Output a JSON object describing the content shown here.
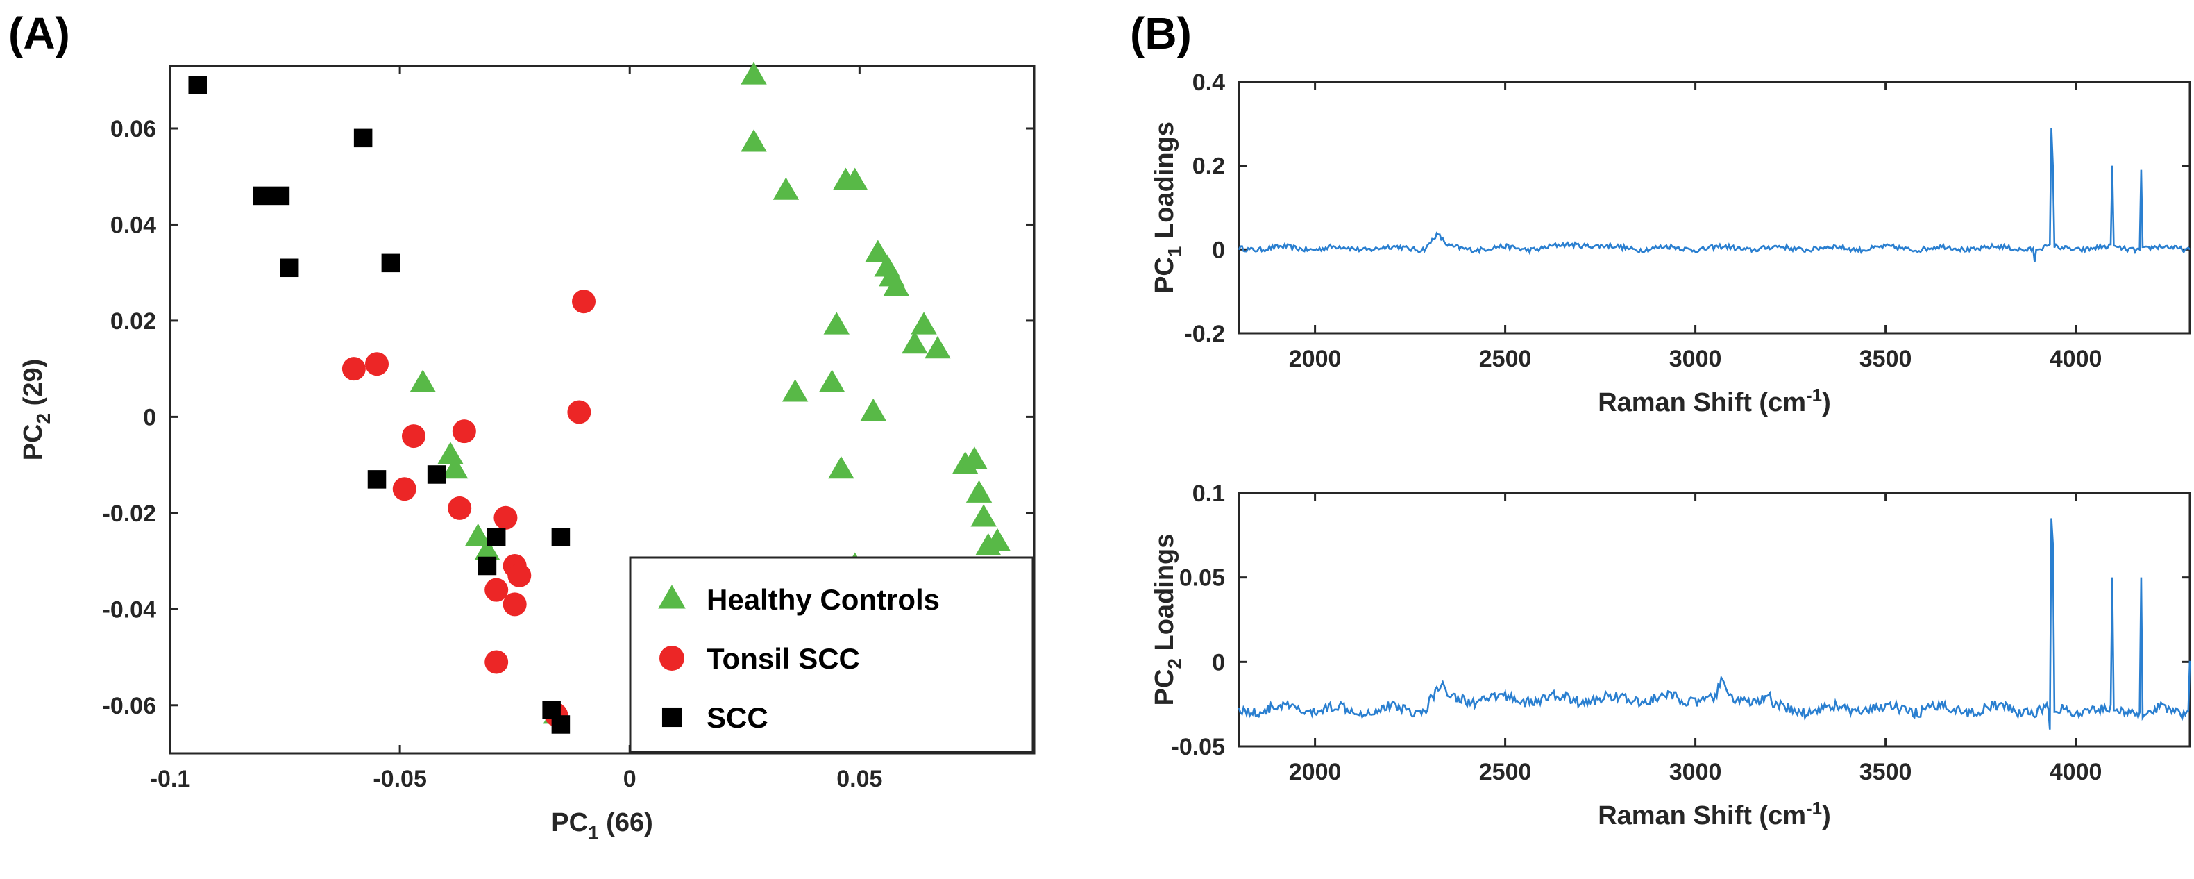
{
  "figure": {
    "panel_labels": [
      "(A)",
      "(B)"
    ]
  },
  "chart_data": [
    {
      "type": "scatter",
      "id": "panel-a",
      "title": "",
      "xlabel": {
        "prefix": "PC",
        "sub": "1",
        "suffix": " (66)"
      },
      "ylabel": {
        "prefix": "PC",
        "sub": "2",
        "suffix": " (29)"
      },
      "xlim": [
        -0.1,
        0.088
      ],
      "ylim": [
        -0.07,
        0.073
      ],
      "xticks": [
        -0.1,
        -0.05,
        0,
        0.05
      ],
      "xtick_labels": [
        "-0.1",
        "-0.05",
        "0",
        "0.05"
      ],
      "yticks": [
        -0.06,
        -0.04,
        -0.02,
        0,
        0.02,
        0.04,
        0.06
      ],
      "ytick_labels": [
        "-0.06",
        "-0.04",
        "-0.02",
        "0",
        "0.02",
        "0.04",
        "0.06"
      ],
      "legend_position": "bottom-right",
      "series": [
        {
          "name": "Healthy Controls",
          "marker": "triangle",
          "color": "#58b947",
          "points": [
            [
              0.027,
              0.071
            ],
            [
              0.027,
              0.057
            ],
            [
              0.034,
              0.047
            ],
            [
              0.047,
              0.049
            ],
            [
              0.049,
              0.049
            ],
            [
              0.054,
              0.034
            ],
            [
              0.056,
              0.031
            ],
            [
              0.057,
              0.029
            ],
            [
              0.058,
              0.027
            ],
            [
              0.064,
              0.019
            ],
            [
              0.062,
              0.015
            ],
            [
              0.067,
              0.014
            ],
            [
              0.045,
              0.019
            ],
            [
              0.044,
              0.007
            ],
            [
              0.053,
              0.001
            ],
            [
              0.036,
              0.005
            ],
            [
              0.046,
              -0.011
            ],
            [
              0.073,
              -0.01
            ],
            [
              0.075,
              -0.009
            ],
            [
              0.076,
              -0.016
            ],
            [
              0.077,
              -0.021
            ],
            [
              0.078,
              -0.027
            ],
            [
              0.08,
              -0.026
            ],
            [
              0.049,
              -0.031
            ],
            [
              -0.045,
              0.007
            ],
            [
              -0.039,
              -0.008
            ],
            [
              -0.038,
              -0.011
            ],
            [
              -0.033,
              -0.025
            ],
            [
              -0.031,
              -0.028
            ],
            [
              -0.016,
              -0.062
            ]
          ]
        },
        {
          "name": "Tonsil SCC",
          "marker": "circle",
          "color": "#ec2626",
          "points": [
            [
              -0.06,
              0.01
            ],
            [
              -0.055,
              0.011
            ],
            [
              -0.047,
              -0.004
            ],
            [
              -0.049,
              -0.015
            ],
            [
              -0.036,
              -0.003
            ],
            [
              -0.037,
              -0.019
            ],
            [
              -0.027,
              -0.021
            ],
            [
              -0.025,
              -0.031
            ],
            [
              -0.024,
              -0.033
            ],
            [
              -0.029,
              -0.036
            ],
            [
              -0.025,
              -0.039
            ],
            [
              -0.029,
              -0.051
            ],
            [
              -0.01,
              0.024
            ],
            [
              -0.011,
              0.001
            ],
            [
              -0.016,
              -0.062
            ]
          ]
        },
        {
          "name": "SCC",
          "marker": "square",
          "color": "#000000",
          "points": [
            [
              -0.094,
              0.069
            ],
            [
              -0.058,
              0.058
            ],
            [
              -0.08,
              0.046
            ],
            [
              -0.076,
              0.046
            ],
            [
              -0.074,
              0.031
            ],
            [
              -0.052,
              0.032
            ],
            [
              -0.055,
              -0.013
            ],
            [
              -0.042,
              -0.012
            ],
            [
              -0.029,
              -0.025
            ],
            [
              -0.031,
              -0.031
            ],
            [
              -0.015,
              -0.025
            ],
            [
              -0.017,
              -0.061
            ],
            [
              -0.015,
              -0.064
            ]
          ]
        }
      ]
    },
    {
      "type": "line",
      "id": "panel-b-top",
      "title": "",
      "xlabel": {
        "prefix": "Raman Shift (cm",
        "sup": "-1",
        "suffix": ")"
      },
      "ylabel": {
        "prefix": "PC",
        "sub": "1",
        "suffix": " Loadings"
      },
      "xlim": [
        1800,
        4300
      ],
      "ylim": [
        -0.2,
        0.4
      ],
      "xticks": [
        2000,
        2500,
        3000,
        3500,
        4000
      ],
      "xtick_labels": [
        "2000",
        "2500",
        "3000",
        "3500",
        "4000"
      ],
      "yticks": [
        -0.2,
        0,
        0.2,
        0.4
      ],
      "ytick_labels": [
        "-0.2",
        "0",
        "0.2",
        "0.4"
      ],
      "color": "#2a7fd0",
      "baseline": 0.003,
      "noise": 0.012,
      "bumps": [
        [
          2320,
          0.03,
          20
        ],
        [
          2700,
          0.01,
          60
        ]
      ],
      "peaks": [
        [
          3890,
          -0.03
        ],
        [
          3935,
          0.29
        ],
        [
          3940,
          0.2
        ],
        [
          4095,
          0.2
        ],
        [
          4170,
          0.19
        ]
      ]
    },
    {
      "type": "line",
      "id": "panel-b-bottom",
      "title": "",
      "xlabel": {
        "prefix": "Raman Shift (cm",
        "sup": "-1",
        "suffix": ")"
      },
      "ylabel": {
        "prefix": "PC",
        "sub": "2",
        "suffix": " Loadings"
      },
      "xlim": [
        1800,
        4300
      ],
      "ylim": [
        -0.05,
        0.1
      ],
      "xticks": [
        2000,
        2500,
        3000,
        3500,
        4000
      ],
      "xtick_labels": [
        "2000",
        "2500",
        "3000",
        "3500",
        "4000"
      ],
      "yticks": [
        -0.05,
        0,
        0.05,
        0.1
      ],
      "ytick_labels": [
        "-0.05",
        "0",
        "0.05",
        "0.1"
      ],
      "color": "#2a7fd0",
      "baseline_segments": [
        [
          1800,
          2300,
          -0.028
        ],
        [
          2300,
          3200,
          -0.022
        ],
        [
          3200,
          3880,
          -0.028
        ],
        [
          3880,
          4300,
          -0.029
        ]
      ],
      "noise": 0.006,
      "bumps": [
        [
          2330,
          0.006,
          20
        ],
        [
          3070,
          0.008,
          12
        ]
      ],
      "peaks": [
        [
          3930,
          -0.04
        ],
        [
          3935,
          0.085
        ],
        [
          3940,
          0.07
        ],
        [
          4095,
          0.05
        ],
        [
          4170,
          0.05
        ]
      ]
    }
  ]
}
